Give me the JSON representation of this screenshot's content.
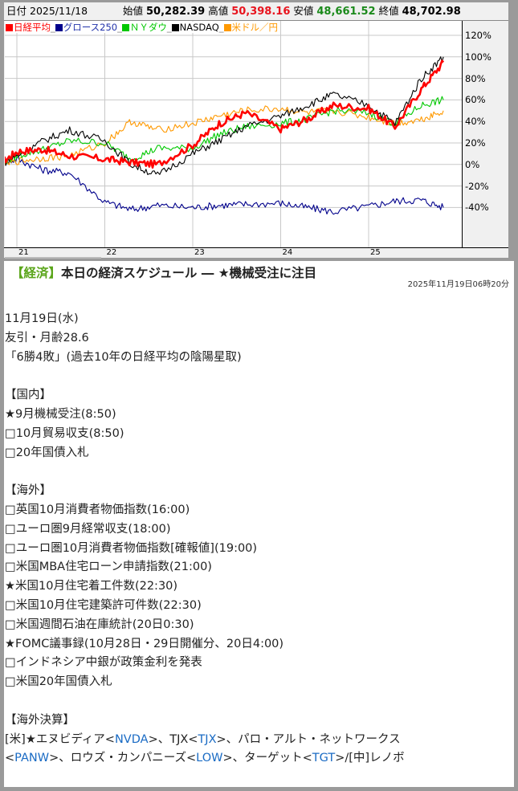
{
  "chart_header": {
    "date_label": "日付",
    "date_value": "2025/11/18",
    "open_label": "始値",
    "open_value": "50,282.39",
    "high_label": "高値",
    "high_value": "50,398.16",
    "low_label": "安値",
    "low_value": "48,661.52",
    "close_label": "終値",
    "close_value": "48,702.98",
    "colors": {
      "high": "#e8141e",
      "low": "#1b8a1b",
      "default": "#111111"
    }
  },
  "chart_data": {
    "type": "line",
    "title": "",
    "xlabel": "",
    "ylabel": "",
    "x_ticks": [
      "21",
      "22",
      "23",
      "24",
      "25"
    ],
    "y_ticks": [
      "120%",
      "100%",
      "80%",
      "60%",
      "40%",
      "20%",
      "0%",
      "-20%",
      "-40%"
    ],
    "ylim": [
      -70,
      130
    ],
    "grid": true,
    "legend_position": "top-left",
    "x": [
      2020.8,
      2021.0,
      2021.3,
      2021.6,
      2022.0,
      2022.3,
      2022.6,
      2023.0,
      2023.3,
      2023.6,
      2024.0,
      2024.3,
      2024.6,
      2025.0,
      2025.3,
      2025.6,
      2025.85
    ],
    "series": [
      {
        "name": "日経平均",
        "color": "#ff0000",
        "values": [
          0,
          12,
          14,
          8,
          5,
          2,
          0,
          18,
          38,
          48,
          33,
          42,
          55,
          52,
          35,
          70,
          95
        ]
      },
      {
        "name": "グロース250",
        "color": "#00008b",
        "values": [
          0,
          5,
          -5,
          -8,
          -35,
          -42,
          -38,
          -40,
          -38,
          -37,
          -36,
          -40,
          -44,
          -39,
          -34,
          -33,
          -40
        ]
      },
      {
        "name": "ＮＹダウ",
        "color": "#00c800",
        "values": [
          0,
          8,
          14,
          22,
          20,
          5,
          15,
          15,
          28,
          35,
          38,
          42,
          50,
          48,
          38,
          55,
          60
        ]
      },
      {
        "name": "NASDAQ",
        "color": "#000000",
        "values": [
          0,
          8,
          22,
          32,
          22,
          0,
          -10,
          10,
          22,
          35,
          45,
          55,
          65,
          55,
          38,
          80,
          100
        ]
      },
      {
        "name": "米ドル／円",
        "color": "#ff9900",
        "values": [
          0,
          3,
          6,
          8,
          20,
          40,
          32,
          38,
          45,
          50,
          52,
          48,
          50,
          44,
          38,
          42,
          50
        ]
      }
    ]
  },
  "article": {
    "category": "【経済】",
    "headline": "本日の経済スケジュール ― ★機械受注に注目",
    "timestamp": "2025年11月19日06時20分",
    "lines": [
      "11月19日(水)",
      "友引・月齢28.6",
      "「6勝4敗」(過去10年の日経平均の陰陽星取)",
      "",
      "【国内】",
      "★9月機械受注(8:50)",
      "□10月貿易収支(8:50)",
      "□20年国債入札",
      "",
      "【海外】",
      "□英国10月消費者物価指数(16:00)",
      "□ユーロ圏9月経常収支(18:00)",
      "□ユーロ圏10月消費者物価指数[確報値](19:00)",
      "□米国MBA住宅ローン申請指数(21:00)",
      "★米国10月住宅着工件数(22:30)",
      "□米国10月住宅建築許可件数(22:30)",
      "□米国週間石油在庫統計(20日0:30)",
      "★FOMC議事録(10月28日・29日開催分、20日4:00)",
      "□インドネシア中銀が政策金利を発表",
      "□米国20年国債入札",
      "",
      "【海外決算】"
    ],
    "earnings": {
      "line1": [
        {
          "text": "[米]★エヌビディア<"
        },
        {
          "text": "NVDA",
          "link": true
        },
        {
          "text": ">、TJX<"
        },
        {
          "text": "TJX",
          "link": true
        },
        {
          "text": ">、パロ・アルト・ネットワークス"
        }
      ],
      "line2": [
        {
          "text": "<"
        },
        {
          "text": "PANW",
          "link": true
        },
        {
          "text": ">、ロウズ・カンパニーズ<"
        },
        {
          "text": "LOW",
          "link": true
        },
        {
          "text": ">、ターゲット<"
        },
        {
          "text": "TGT",
          "link": true
        },
        {
          "text": ">/[中]レノボ"
        }
      ]
    },
    "colors": {
      "category": "#5aa51a",
      "ticker_link": "#1a6bc4"
    }
  }
}
